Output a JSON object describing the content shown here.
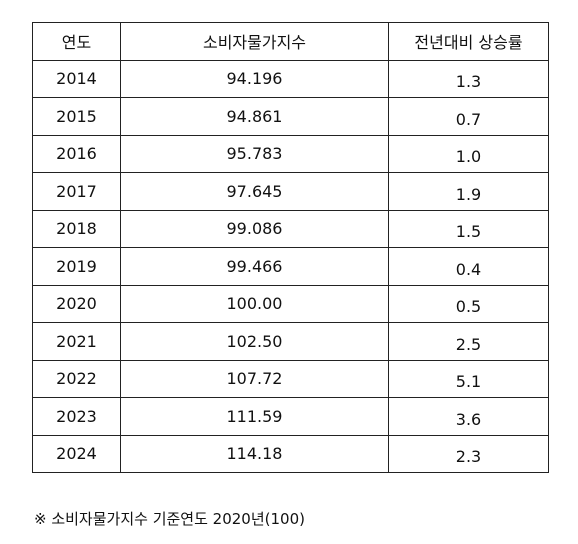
{
  "table": {
    "header": [
      "연도",
      "소비자물가지수",
      "전년대비 상승률"
    ],
    "rows": [
      [
        "2014",
        "94.196",
        "1.3"
      ],
      [
        "2015",
        "94.861",
        "0.7"
      ],
      [
        "2016",
        "95.783",
        "1.0"
      ],
      [
        "2017",
        "97.645",
        "1.9"
      ],
      [
        "2018",
        "99.086",
        "1.5"
      ],
      [
        "2019",
        "99.466",
        "0.4"
      ],
      [
        "2020",
        "100.00",
        "0.5"
      ],
      [
        "2021",
        "102.50",
        "2.5"
      ],
      [
        "2022",
        "107.72",
        "5.1"
      ],
      [
        "2023",
        "111.59",
        "3.6"
      ],
      [
        "2024",
        "114.18",
        "2.3"
      ]
    ]
  },
  "footnote": "※ 소비자물가지수 기준연도 2020년(100)"
}
